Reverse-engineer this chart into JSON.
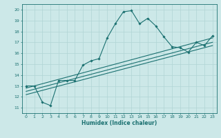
{
  "title": "",
  "xlabel": "Humidex (Indice chaleur)",
  "ylabel": "",
  "xlim": [
    -0.5,
    23.5
  ],
  "ylim": [
    10.5,
    20.5
  ],
  "xticks": [
    0,
    1,
    2,
    3,
    4,
    5,
    6,
    7,
    8,
    9,
    10,
    11,
    12,
    13,
    14,
    15,
    16,
    17,
    18,
    19,
    20,
    21,
    22,
    23
  ],
  "yticks": [
    11,
    12,
    13,
    14,
    15,
    16,
    17,
    18,
    19,
    20
  ],
  "background_color": "#cce8e8",
  "grid_color": "#b0d4d4",
  "line_color": "#1a7070",
  "line1_x": [
    0,
    1,
    2,
    3,
    4,
    5,
    6,
    7,
    8,
    9,
    10,
    11,
    12,
    13,
    14,
    15,
    16,
    17,
    18,
    19,
    20,
    21,
    22,
    23
  ],
  "line1_y": [
    13.0,
    13.0,
    11.5,
    11.2,
    13.5,
    13.5,
    13.5,
    14.9,
    15.3,
    15.5,
    17.4,
    18.7,
    19.8,
    19.9,
    18.7,
    19.2,
    18.5,
    17.5,
    16.6,
    16.5,
    16.1,
    17.0,
    16.7,
    17.6
  ],
  "line2_x": [
    0,
    23
  ],
  "line2_y": [
    12.8,
    17.4
  ],
  "line3_x": [
    0,
    23
  ],
  "line3_y": [
    12.5,
    17.0
  ],
  "line4_x": [
    0,
    23
  ],
  "line4_y": [
    12.2,
    16.7
  ]
}
